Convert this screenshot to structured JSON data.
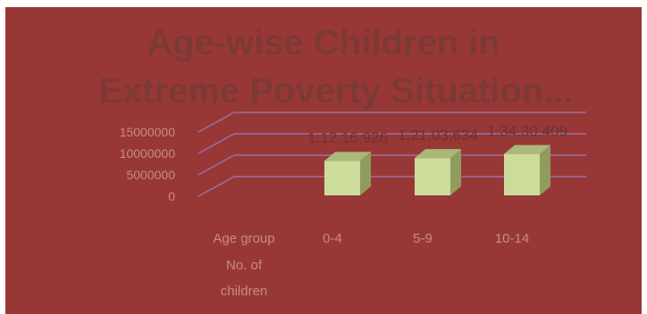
{
  "chart_data": {
    "type": "bar",
    "title_lines": [
      "Age-wise Children in",
      "Extreme Poverty Situation..."
    ],
    "categories": [
      "0-4",
      "5-9",
      "10-14"
    ],
    "values": [
      11216926,
      12103634,
      13430409
    ],
    "data_labels": [
      "1,12,16,926",
      "1,21,03,634",
      "1,34,30,409"
    ],
    "yticks": [
      "0",
      "5000000",
      "10000000",
      "15000000"
    ],
    "ylim": [
      0,
      15000000
    ],
    "row_header": [
      "Age group",
      "No. of",
      "children"
    ],
    "grid": true,
    "three_d": true
  },
  "colors": {
    "background": "#983836",
    "title": "#7d3935",
    "axis_text": "#c48a88",
    "data_label": "#6a3432",
    "grid": "#9b6fa3",
    "bar_front": "#ccdc9b",
    "bar_side": "#8f9c5e",
    "bar_top": "#aab87a"
  }
}
